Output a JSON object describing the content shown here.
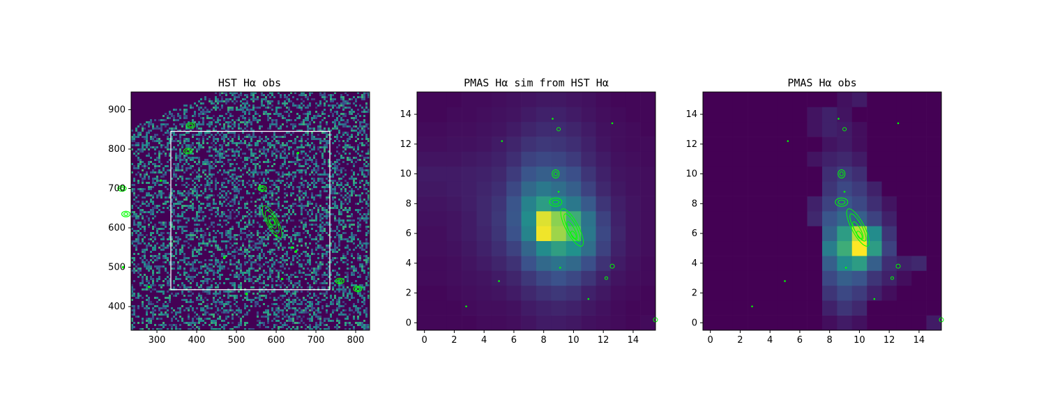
{
  "colors": {
    "background": "#440154",
    "contour": "#00ff00",
    "box": "#ffffff",
    "colormap": [
      "#440154",
      "#3b528b",
      "#21918c",
      "#5ec962",
      "#fde725"
    ]
  },
  "chart_data": [
    {
      "type": "heatmap",
      "title": "HST Hα obs",
      "colormap": "viridis",
      "xlim": [
        235,
        835
      ],
      "ylim": [
        340,
        945
      ],
      "xticks": [
        300,
        400,
        500,
        600,
        700,
        800
      ],
      "yticks": [
        400,
        500,
        600,
        700,
        800,
        900
      ],
      "grid": false,
      "box": {
        "x": [
          335,
          735
        ],
        "y": [
          443,
          845
        ]
      },
      "source_centers": [
        {
          "x": 590,
          "y": 615
        },
        {
          "x": 565,
          "y": 700
        },
        {
          "x": 378,
          "y": 795
        },
        {
          "x": 385,
          "y": 860
        },
        {
          "x": 222,
          "y": 635
        },
        {
          "x": 212,
          "y": 700
        },
        {
          "x": 760,
          "y": 465
        },
        {
          "x": 805,
          "y": 445
        }
      ]
    },
    {
      "type": "heatmap",
      "title": "PMAS Hα sim from HST Hα",
      "colormap": "viridis",
      "xlim": [
        -0.5,
        15.5
      ],
      "ylim": [
        -0.5,
        15.5
      ],
      "xticks": [
        0,
        2,
        4,
        6,
        8,
        10,
        12,
        14
      ],
      "yticks": [
        0,
        2,
        4,
        6,
        8,
        10,
        12,
        14
      ],
      "grid": false,
      "values": [
        [
          0.02,
          0.02,
          0.02,
          0.02,
          0.03,
          0.03,
          0.04,
          0.06,
          0.08,
          0.08,
          0.07,
          0.05,
          0.04,
          0.03,
          0.02,
          0.03
        ],
        [
          0.02,
          0.02,
          0.02,
          0.03,
          0.04,
          0.04,
          0.05,
          0.08,
          0.1,
          0.11,
          0.1,
          0.07,
          0.05,
          0.03,
          0.02,
          0.02
        ],
        [
          0.02,
          0.02,
          0.03,
          0.04,
          0.05,
          0.06,
          0.08,
          0.12,
          0.15,
          0.17,
          0.15,
          0.1,
          0.07,
          0.04,
          0.03,
          0.02
        ],
        [
          0.03,
          0.03,
          0.04,
          0.05,
          0.06,
          0.08,
          0.11,
          0.17,
          0.22,
          0.25,
          0.22,
          0.16,
          0.1,
          0.06,
          0.04,
          0.03
        ],
        [
          0.03,
          0.03,
          0.04,
          0.06,
          0.08,
          0.11,
          0.15,
          0.25,
          0.34,
          0.38,
          0.34,
          0.24,
          0.15,
          0.08,
          0.05,
          0.03
        ],
        [
          0.04,
          0.04,
          0.05,
          0.07,
          0.1,
          0.14,
          0.2,
          0.33,
          0.48,
          0.56,
          0.5,
          0.36,
          0.2,
          0.1,
          0.06,
          0.04
        ],
        [
          0.04,
          0.04,
          0.06,
          0.08,
          0.11,
          0.16,
          0.25,
          0.45,
          0.98,
          0.85,
          0.72,
          0.4,
          0.22,
          0.11,
          0.06,
          0.04
        ],
        [
          0.05,
          0.05,
          0.06,
          0.08,
          0.12,
          0.17,
          0.27,
          0.48,
          0.95,
          0.82,
          0.62,
          0.38,
          0.2,
          0.1,
          0.06,
          0.04
        ],
        [
          0.06,
          0.06,
          0.07,
          0.09,
          0.12,
          0.16,
          0.26,
          0.44,
          0.55,
          0.48,
          0.4,
          0.28,
          0.16,
          0.09,
          0.06,
          0.04
        ],
        [
          0.07,
          0.07,
          0.08,
          0.09,
          0.11,
          0.14,
          0.22,
          0.34,
          0.4,
          0.36,
          0.3,
          0.2,
          0.12,
          0.07,
          0.05,
          0.04
        ],
        [
          0.08,
          0.08,
          0.08,
          0.09,
          0.1,
          0.12,
          0.18,
          0.26,
          0.3,
          0.28,
          0.24,
          0.16,
          0.1,
          0.06,
          0.05,
          0.04
        ],
        [
          0.06,
          0.06,
          0.06,
          0.07,
          0.08,
          0.1,
          0.14,
          0.2,
          0.22,
          0.21,
          0.18,
          0.12,
          0.08,
          0.05,
          0.04,
          0.03
        ],
        [
          0.04,
          0.04,
          0.05,
          0.05,
          0.06,
          0.08,
          0.11,
          0.15,
          0.17,
          0.16,
          0.14,
          0.1,
          0.06,
          0.04,
          0.03,
          0.03
        ],
        [
          0.03,
          0.03,
          0.04,
          0.04,
          0.05,
          0.06,
          0.08,
          0.11,
          0.13,
          0.13,
          0.11,
          0.08,
          0.05,
          0.04,
          0.03,
          0.02
        ],
        [
          0.02,
          0.02,
          0.03,
          0.03,
          0.04,
          0.05,
          0.06,
          0.08,
          0.1,
          0.1,
          0.08,
          0.06,
          0.04,
          0.03,
          0.02,
          0.02
        ],
        [
          0.02,
          0.02,
          0.02,
          0.03,
          0.03,
          0.04,
          0.05,
          0.06,
          0.07,
          0.07,
          0.06,
          0.05,
          0.03,
          0.02,
          0.02,
          0.02
        ]
      ]
    },
    {
      "type": "heatmap",
      "title": "PMAS Hα obs",
      "colormap": "viridis",
      "xlim": [
        -0.5,
        15.5
      ],
      "ylim": [
        -0.5,
        15.5
      ],
      "xticks": [
        0,
        2,
        4,
        6,
        8,
        10,
        12,
        14
      ],
      "yticks": [
        0,
        2,
        4,
        6,
        8,
        10,
        12,
        14
      ],
      "grid": false,
      "values": [
        [
          0,
          0,
          0,
          0,
          0,
          0,
          0,
          0,
          0.04,
          0.08,
          0.05,
          0,
          0,
          0,
          0,
          0.08
        ],
        [
          0,
          0,
          0,
          0,
          0,
          0,
          0,
          0,
          0.1,
          0.16,
          0.12,
          0,
          0,
          0,
          0,
          0
        ],
        [
          0,
          0,
          0,
          0,
          0,
          0,
          0,
          0,
          0.16,
          0.22,
          0.18,
          0.1,
          0.04,
          0,
          0,
          0
        ],
        [
          0,
          0,
          0,
          0,
          0,
          0,
          0,
          0,
          0.22,
          0.3,
          0.26,
          0.16,
          0.1,
          0.04,
          0,
          0
        ],
        [
          0,
          0,
          0,
          0,
          0,
          0,
          0,
          0,
          0.3,
          0.48,
          0.55,
          0.3,
          0.14,
          0.1,
          0.12,
          0
        ],
        [
          0,
          0,
          0,
          0,
          0,
          0,
          0,
          0,
          0.42,
          0.62,
          1.0,
          0.55,
          0.2,
          0,
          0,
          0
        ],
        [
          0,
          0,
          0,
          0,
          0,
          0,
          0,
          0,
          0.32,
          0.55,
          0.9,
          0.48,
          0.16,
          0,
          0,
          0
        ],
        [
          0,
          0,
          0,
          0,
          0,
          0,
          0,
          0.12,
          0.26,
          0.34,
          0.3,
          0.2,
          0.1,
          0,
          0,
          0
        ],
        [
          0,
          0,
          0,
          0,
          0,
          0,
          0,
          0.1,
          0.2,
          0.26,
          0.22,
          0.14,
          0.06,
          0,
          0,
          0
        ],
        [
          0,
          0,
          0,
          0,
          0,
          0,
          0,
          0,
          0.16,
          0.22,
          0.18,
          0.1,
          0,
          0,
          0,
          0
        ],
        [
          0,
          0,
          0,
          0,
          0,
          0,
          0,
          0,
          0.14,
          0.18,
          0.14,
          0,
          0,
          0,
          0,
          0
        ],
        [
          0,
          0,
          0,
          0,
          0,
          0,
          0,
          0.06,
          0.1,
          0.12,
          0.08,
          0,
          0,
          0,
          0,
          0
        ],
        [
          0,
          0,
          0,
          0,
          0,
          0,
          0,
          0,
          0.06,
          0.08,
          0.04,
          0,
          0,
          0,
          0,
          0
        ],
        [
          0,
          0,
          0,
          0,
          0,
          0,
          0,
          0.06,
          0.1,
          0.08,
          0.04,
          0,
          0,
          0,
          0,
          0
        ],
        [
          0,
          0,
          0,
          0,
          0,
          0,
          0,
          0.06,
          0.1,
          0.06,
          0,
          0,
          0,
          0,
          0,
          0
        ],
        [
          0,
          0,
          0,
          0,
          0,
          0,
          0,
          0,
          0,
          0.05,
          0.08,
          0,
          0,
          0,
          0,
          0
        ]
      ]
    }
  ]
}
